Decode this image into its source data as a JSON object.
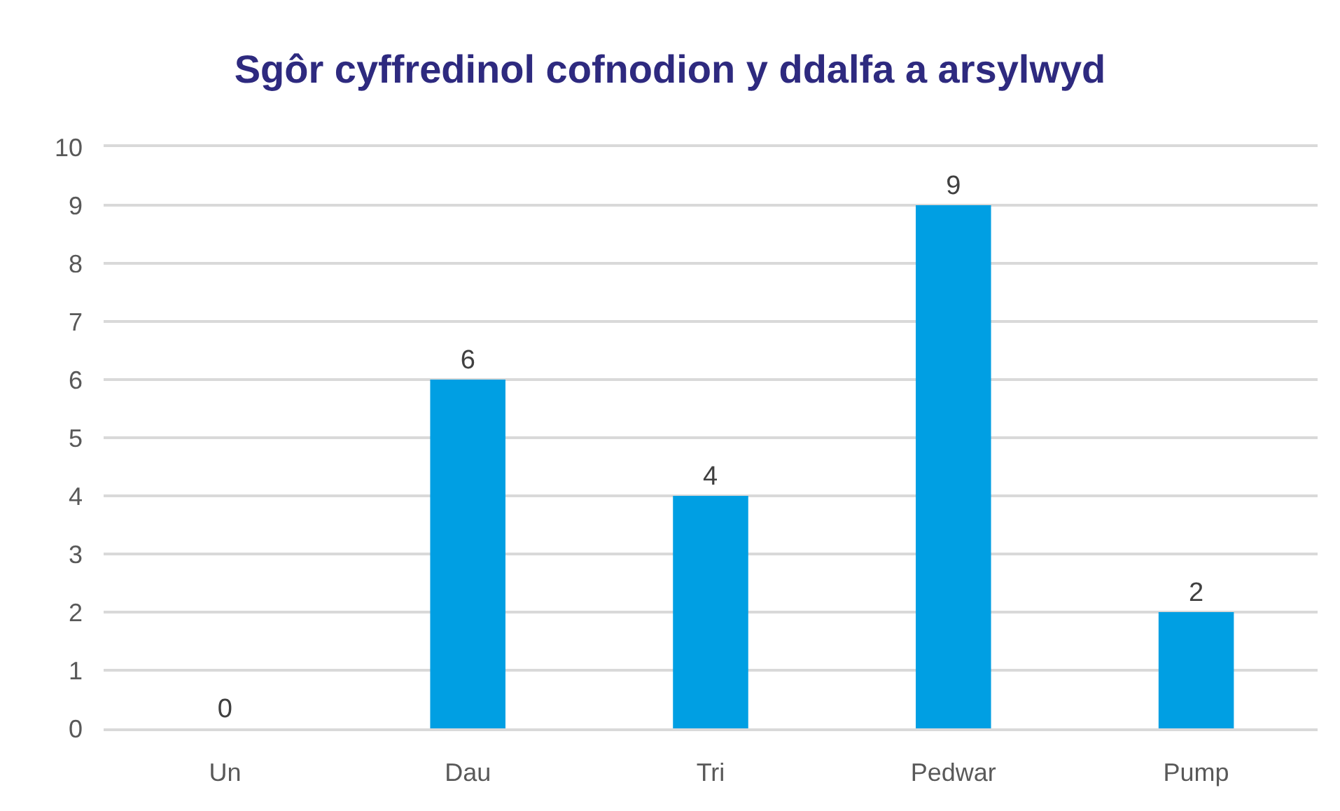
{
  "chart_data": {
    "type": "bar",
    "title": "Sgôr cyffredinol cofnodion y ddalfa a arsylwyd",
    "categories": [
      "Un",
      "Dau",
      "Tri",
      "Pedwar",
      "Pump"
    ],
    "values": [
      0,
      6,
      4,
      9,
      2
    ],
    "color": "#009fe3",
    "ylim": [
      0,
      10
    ],
    "yticks": [
      0,
      1,
      2,
      3,
      4,
      5,
      6,
      7,
      8,
      9,
      10
    ],
    "grid": "y",
    "data_labels": true
  }
}
